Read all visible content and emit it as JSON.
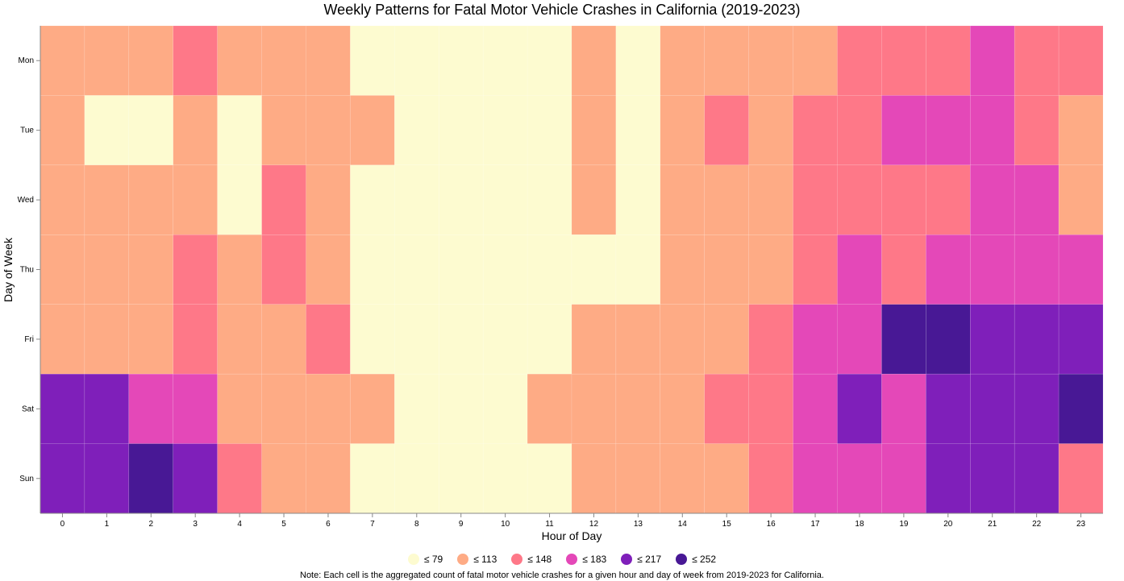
{
  "chart_data": {
    "type": "heatmap",
    "title": "Weekly Patterns for Fatal Motor Vehicle Crashes in California (2019-2023)",
    "xlabel": "Hour of Day",
    "ylabel": "Day of Week",
    "x": [
      "0",
      "1",
      "2",
      "3",
      "4",
      "5",
      "6",
      "7",
      "8",
      "9",
      "10",
      "11",
      "12",
      "13",
      "14",
      "15",
      "16",
      "17",
      "18",
      "19",
      "20",
      "21",
      "22",
      "23"
    ],
    "y": [
      "Mon",
      "Tue",
      "Wed",
      "Thu",
      "Fri",
      "Sat",
      "Sun"
    ],
    "bins": [
      {
        "label": "≤ 79",
        "max": 79,
        "color": "#fdfbd0"
      },
      {
        "label": "≤ 113",
        "max": 113,
        "color": "#feab85"
      },
      {
        "label": "≤ 148",
        "max": 148,
        "color": "#fe7888"
      },
      {
        "label": "≤ 183",
        "max": 183,
        "color": "#e448b8"
      },
      {
        "label": "≤ 217",
        "max": 217,
        "color": "#7f1fba"
      },
      {
        "label": "≤ 252",
        "max": 252,
        "color": "#481895"
      }
    ],
    "bin_matrix": [
      [
        1,
        1,
        1,
        2,
        1,
        1,
        1,
        0,
        0,
        0,
        0,
        0,
        1,
        0,
        1,
        1,
        1,
        1,
        2,
        2,
        2,
        3,
        2,
        2
      ],
      [
        1,
        0,
        0,
        1,
        0,
        1,
        1,
        1,
        0,
        0,
        0,
        0,
        1,
        0,
        1,
        2,
        1,
        2,
        2,
        3,
        3,
        3,
        2,
        1
      ],
      [
        1,
        1,
        1,
        1,
        0,
        2,
        1,
        0,
        0,
        0,
        0,
        0,
        1,
        0,
        1,
        1,
        1,
        2,
        2,
        2,
        2,
        3,
        3,
        1
      ],
      [
        1,
        1,
        1,
        2,
        1,
        2,
        1,
        0,
        0,
        0,
        0,
        0,
        0,
        0,
        1,
        1,
        1,
        2,
        3,
        2,
        3,
        3,
        3,
        3
      ],
      [
        1,
        1,
        1,
        2,
        1,
        1,
        2,
        0,
        0,
        0,
        0,
        0,
        1,
        1,
        1,
        1,
        2,
        3,
        3,
        5,
        5,
        4,
        4,
        4
      ],
      [
        4,
        4,
        3,
        3,
        1,
        1,
        1,
        1,
        0,
        0,
        0,
        1,
        1,
        1,
        1,
        2,
        2,
        3,
        4,
        3,
        4,
        4,
        4,
        5
      ],
      [
        4,
        4,
        5,
        4,
        2,
        1,
        1,
        0,
        0,
        0,
        0,
        0,
        1,
        1,
        1,
        1,
        2,
        3,
        3,
        3,
        4,
        4,
        4,
        2
      ]
    ],
    "note": "Note: Each cell is the aggregated count of fatal motor vehicle crashes for a given hour and day of week from 2019-2023 for California."
  }
}
